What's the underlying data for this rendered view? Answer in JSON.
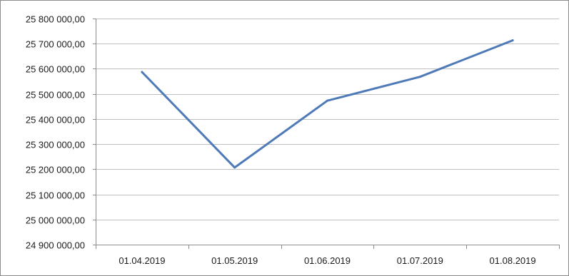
{
  "chart_data": {
    "type": "line",
    "title": "",
    "xlabel": "",
    "ylabel": "",
    "categories": [
      "01.04.2019",
      "01.05.2019",
      "01.06.2019",
      "01.07.2019",
      "01.08.2019"
    ],
    "series": [
      {
        "values": [
          25587000,
          25207000,
          25473000,
          25568000,
          25713000
        ],
        "color": "#4f7ab8"
      }
    ],
    "ylim": [
      24900000,
      25800000
    ],
    "y_ticks": [
      24900000,
      25000000,
      25100000,
      25200000,
      25300000,
      25400000,
      25500000,
      25600000,
      25700000,
      25800000
    ],
    "y_tick_labels": [
      "24 900 000,00",
      "25 000 000,00",
      "25 100 000,00",
      "25 200 000,00",
      "25 300 000,00",
      "25 400 000,00",
      "25 500 000,00",
      "25 600 000,00",
      "25 700 000,00",
      "25 800 000,00"
    ],
    "grid": true,
    "legend": "none",
    "colors": {
      "gridline": "#bfbfbf",
      "axis": "#8c8c8c",
      "text": "#1a1a1a"
    }
  }
}
